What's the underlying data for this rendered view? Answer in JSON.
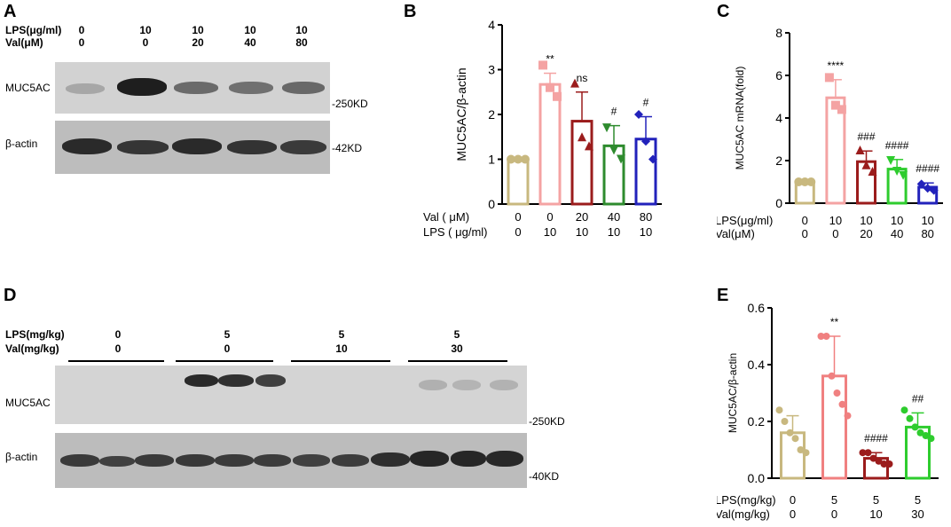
{
  "panelA": {
    "letter": "A",
    "row1_label": "LPS(μg/ml)",
    "row2_label": "Val(μM)",
    "lps": [
      "0",
      "10",
      "10",
      "10",
      "10"
    ],
    "val": [
      "0",
      "0",
      "20",
      "40",
      "80"
    ],
    "blot1_label": "MUC5AC",
    "blot1_size": "-250KD",
    "blot2_label": "β-actin",
    "blot2_size": "-42KD"
  },
  "panelB": {
    "letter": "B",
    "chart_data": {
      "type": "bar",
      "ylabel": "MUC5AC/β-actin",
      "ylim": [
        0,
        4
      ],
      "yticks": [
        "0",
        "1",
        "2",
        "3",
        "4"
      ],
      "row1_label": "Val ( μM)",
      "row2_label": "LPS ( μg/ml)",
      "row1": [
        "0",
        "0",
        "20",
        "40",
        "80"
      ],
      "row2": [
        "0",
        "10",
        "10",
        "10",
        "10"
      ],
      "values": [
        1.0,
        2.67,
        1.85,
        1.3,
        1.45
      ],
      "errors": [
        0.0,
        0.25,
        0.65,
        0.45,
        0.5
      ],
      "points": [
        [
          1.0,
          1.0,
          1.0
        ],
        [
          3.1,
          2.6,
          2.4
        ],
        [
          2.7,
          1.5,
          1.3
        ],
        [
          1.7,
          1.2,
          1.0
        ],
        [
          2.0,
          1.4,
          1.0
        ]
      ],
      "annotations": [
        "",
        "**",
        "ns",
        "#",
        "#"
      ],
      "colors": [
        "#c8b87f",
        "#f4a3a3",
        "#9b1c1c",
        "#2e8b2e",
        "#2222bb"
      ],
      "markers": [
        "circle",
        "square",
        "triangle",
        "down-triangle",
        "diamond"
      ]
    }
  },
  "panelC": {
    "letter": "C",
    "chart_data": {
      "type": "bar",
      "ylabel": "MUC5AC  mRNA(fold)",
      "ylim": [
        0,
        8
      ],
      "yticks": [
        "0",
        "2",
        "4",
        "6",
        "8"
      ],
      "row1_label": "LPS(μg/ml)",
      "row2_label": "Val(μM)",
      "row1": [
        "0",
        "10",
        "10",
        "10",
        "10"
      ],
      "row2": [
        "0",
        "0",
        "20",
        "40",
        "80"
      ],
      "values": [
        1.0,
        4.95,
        1.95,
        1.6,
        0.75
      ],
      "errors": [
        0.05,
        0.85,
        0.5,
        0.45,
        0.2
      ],
      "points": [
        [
          1.0,
          1.0,
          1.0
        ],
        [
          5.9,
          4.6,
          4.4
        ],
        [
          2.5,
          1.8,
          1.5
        ],
        [
          2.0,
          1.5,
          1.3
        ],
        [
          0.9,
          0.7,
          0.6
        ]
      ],
      "annotations": [
        "",
        "****",
        "###",
        "####",
        "####"
      ],
      "colors": [
        "#c8b87f",
        "#f4a3a3",
        "#9b1c1c",
        "#2ecc2e",
        "#2222bb"
      ],
      "markers": [
        "circle",
        "square",
        "triangle",
        "down-triangle",
        "diamond"
      ]
    }
  },
  "panelD": {
    "letter": "D",
    "row1_label": "LPS(mg/kg)",
    "row2_label": "Val(mg/kg)",
    "lps": [
      "0",
      "5",
      "5",
      "5"
    ],
    "val": [
      "0",
      "0",
      "10",
      "30"
    ],
    "blot1_label": "MUC5AC",
    "blot1_size": "-250KD",
    "blot2_label": "β-actin",
    "blot2_size": "-40KD"
  },
  "panelE": {
    "letter": "E",
    "chart_data": {
      "type": "bar",
      "ylabel": "MUC5AC/β-actin",
      "ylim": [
        0,
        0.6
      ],
      "yticks": [
        "0.0",
        "0.2",
        "0.4",
        "0.6"
      ],
      "row1_label": "LPS(mg/kg)",
      "row2_label": "Val(mg/kg)",
      "row1": [
        "0",
        "5",
        "5",
        "5"
      ],
      "row2": [
        "0",
        "0",
        "10",
        "30"
      ],
      "values": [
        0.16,
        0.36,
        0.07,
        0.18
      ],
      "errors": [
        0.06,
        0.14,
        0.02,
        0.05
      ],
      "points": [
        [
          0.24,
          0.2,
          0.16,
          0.14,
          0.1,
          0.09
        ],
        [
          0.5,
          0.5,
          0.36,
          0.3,
          0.26,
          0.22
        ],
        [
          0.09,
          0.09,
          0.07,
          0.06,
          0.05,
          0.05
        ],
        [
          0.24,
          0.21,
          0.18,
          0.16,
          0.15,
          0.14
        ]
      ],
      "annotations": [
        "",
        "**",
        "####",
        "##"
      ],
      "colors": [
        "#c8b87f",
        "#f08080",
        "#9b1c1c",
        "#2ecc2e"
      ],
      "markers": [
        "circle",
        "circle",
        "circle",
        "circle"
      ]
    }
  }
}
